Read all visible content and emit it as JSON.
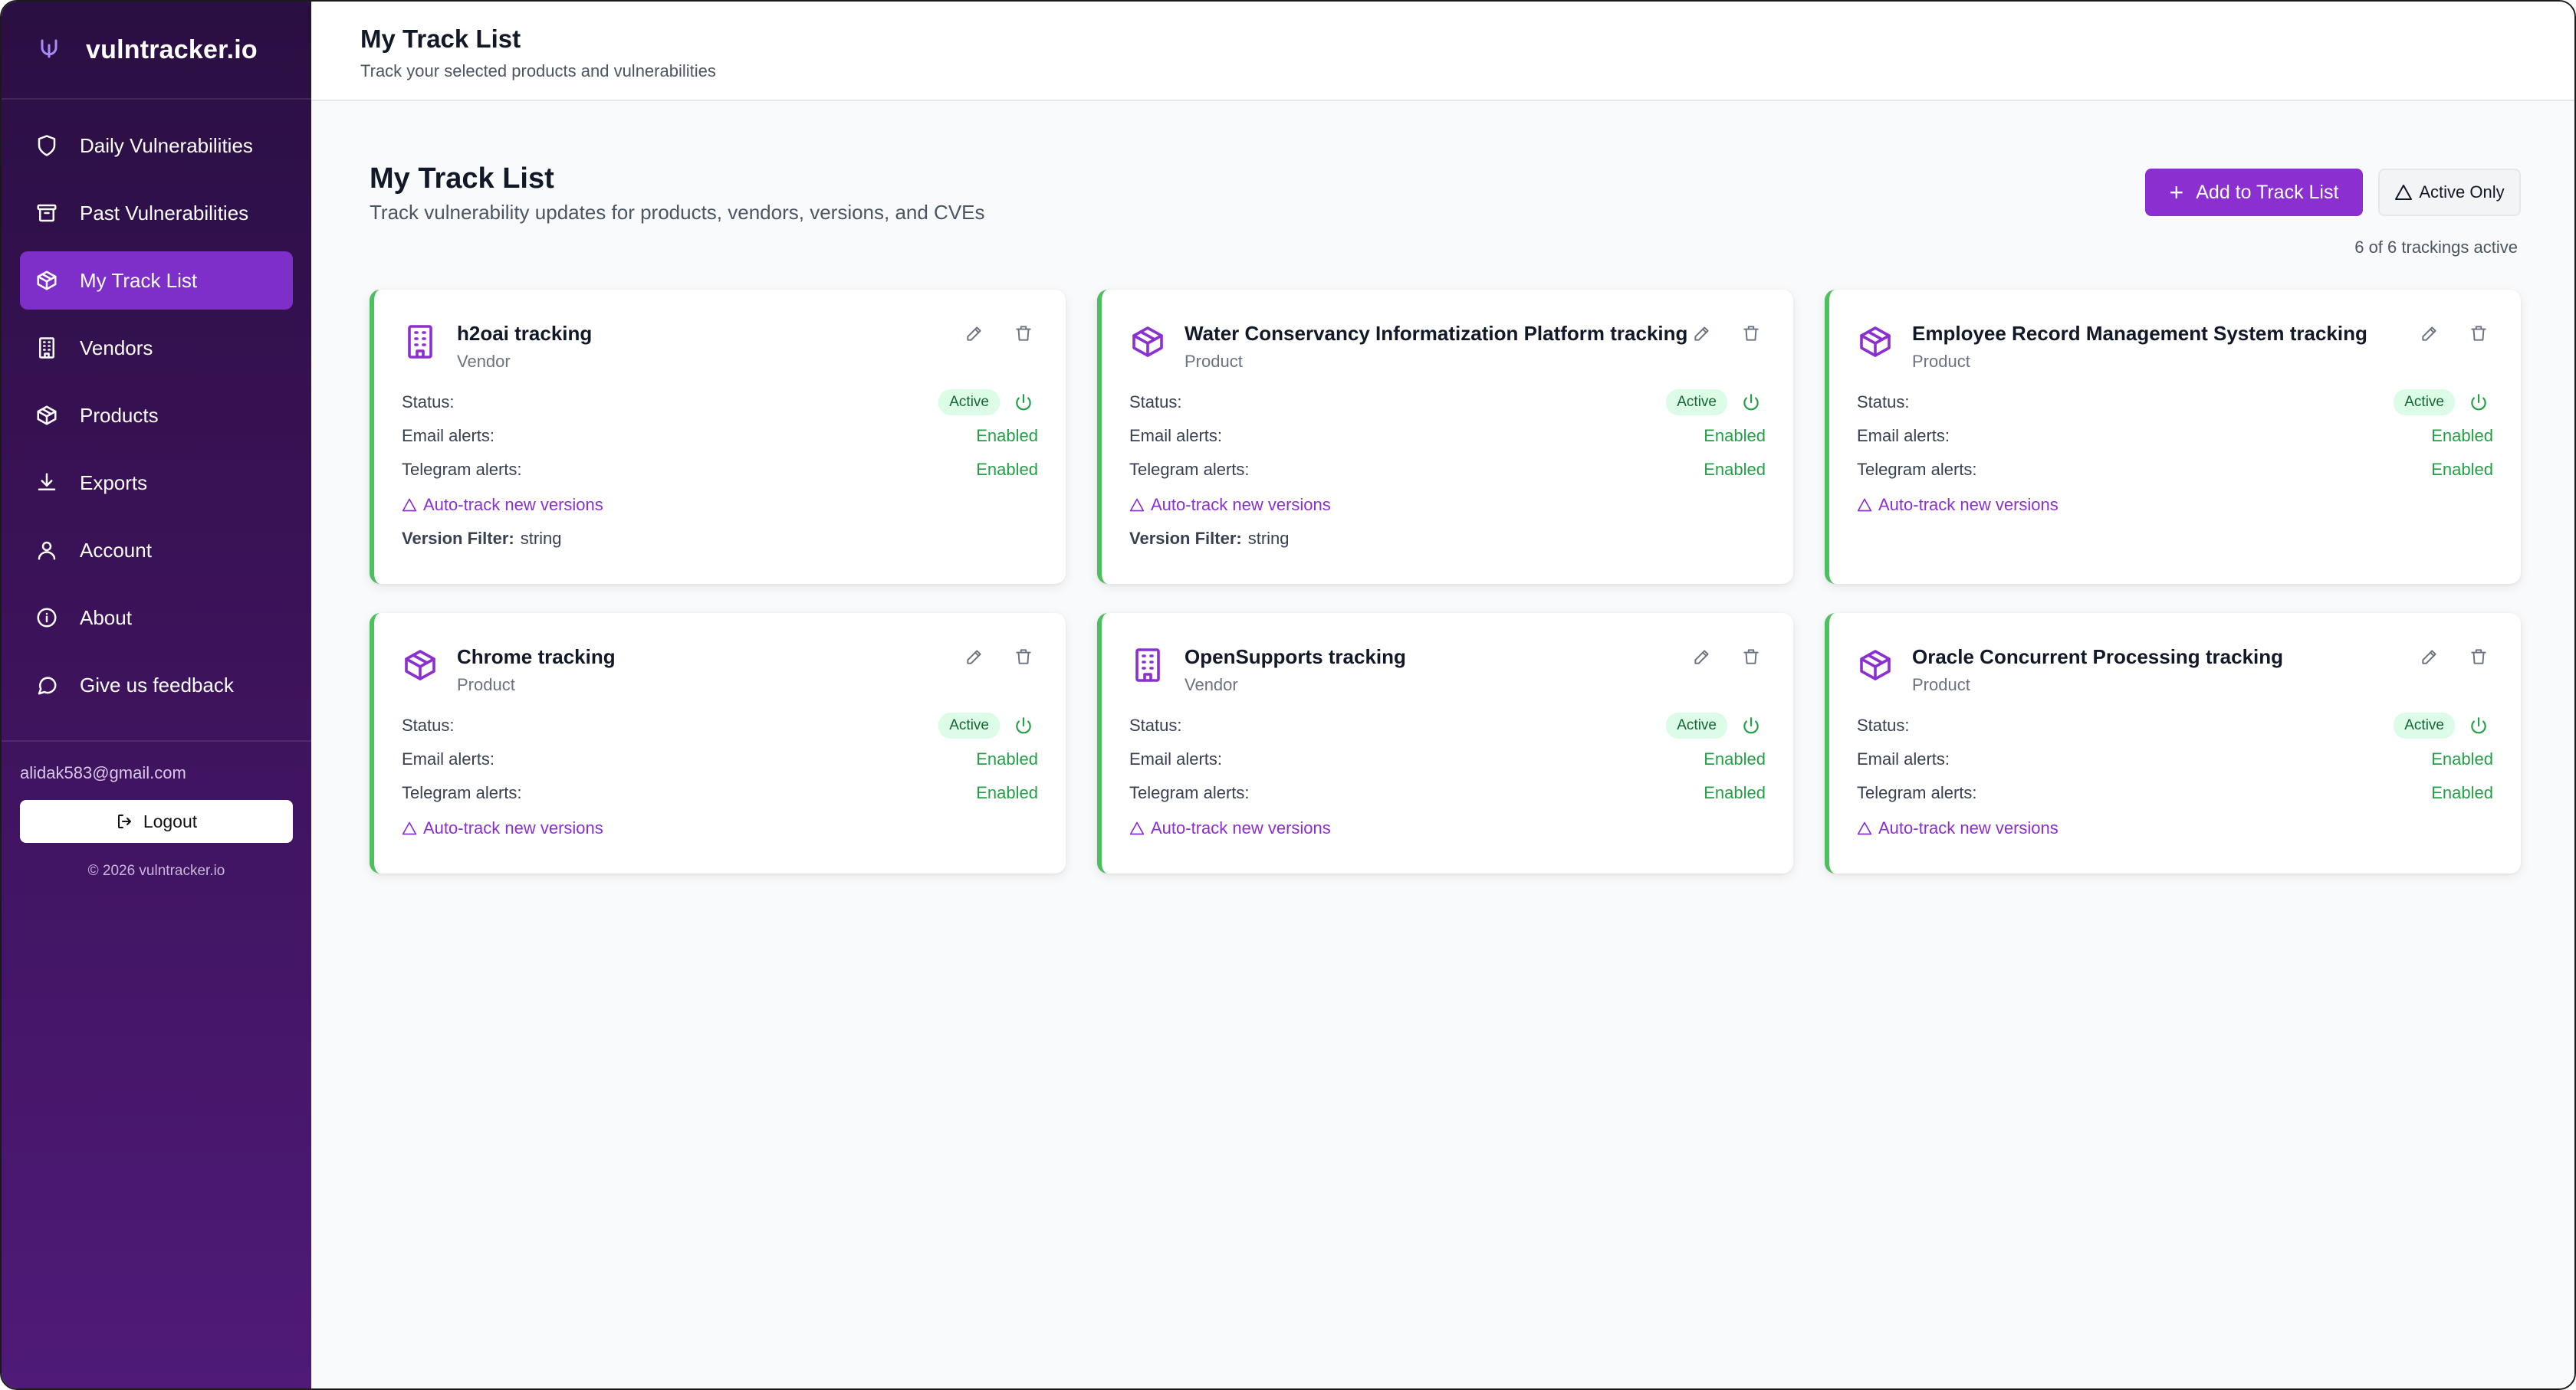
{
  "sidebar": {
    "brand": "vulntracker.io",
    "items": [
      {
        "label": "Daily Vulnerabilities",
        "icon": "shield-icon"
      },
      {
        "label": "Past Vulnerabilities",
        "icon": "archive-icon"
      },
      {
        "label": "My Track List",
        "icon": "package-icon",
        "active": true
      },
      {
        "label": "Vendors",
        "icon": "building-icon"
      },
      {
        "label": "Products",
        "icon": "package-icon"
      },
      {
        "label": "Exports",
        "icon": "download-icon"
      },
      {
        "label": "Account",
        "icon": "user-icon"
      },
      {
        "label": "About",
        "icon": "info-icon"
      },
      {
        "label": "Give us feedback",
        "icon": "message-icon"
      }
    ],
    "user_email": "alidak583@gmail.com",
    "logout_label": "Logout",
    "copyright": "© 2026 vulntracker.io"
  },
  "header": {
    "title": "My Track List",
    "subtitle": "Track your selected products and vulnerabilities"
  },
  "main": {
    "title": "My Track List",
    "subtitle": "Track vulnerability updates for products, vendors, versions, and CVEs",
    "add_button": "Add to Track List",
    "active_only_button": "Active Only",
    "count_text": "6 of 6 trackings active",
    "labels": {
      "status": "Status:",
      "email": "Email alerts:",
      "telegram": "Telegram alerts:",
      "auto_track": "Auto-track new versions",
      "version_filter": "Version Filter:"
    },
    "cards": [
      {
        "title": "h2oai tracking",
        "type": "Vendor",
        "icon": "building-icon",
        "status": "Active",
        "email": "Enabled",
        "telegram": "Enabled",
        "version_filter": "string"
      },
      {
        "title": "Water Conservancy Informatization Platform tracking",
        "type": "Product",
        "icon": "package-icon",
        "status": "Active",
        "email": "Enabled",
        "telegram": "Enabled",
        "version_filter": "string"
      },
      {
        "title": "Employee Record Management System tracking",
        "type": "Product",
        "icon": "package-icon",
        "status": "Active",
        "email": "Enabled",
        "telegram": "Enabled"
      },
      {
        "title": "Chrome tracking",
        "type": "Product",
        "icon": "package-icon",
        "status": "Active",
        "email": "Enabled",
        "telegram": "Enabled"
      },
      {
        "title": "OpenSupports tracking",
        "type": "Vendor",
        "icon": "building-icon",
        "status": "Active",
        "email": "Enabled",
        "telegram": "Enabled"
      },
      {
        "title": "Oracle Concurrent Processing tracking",
        "type": "Product",
        "icon": "package-icon",
        "status": "Active",
        "email": "Enabled",
        "telegram": "Enabled"
      }
    ]
  },
  "colors": {
    "accent": "#8b2fd0",
    "sidebar_top": "#2a0f42",
    "sidebar_bottom": "#4f1a78",
    "success": "#22a046"
  }
}
